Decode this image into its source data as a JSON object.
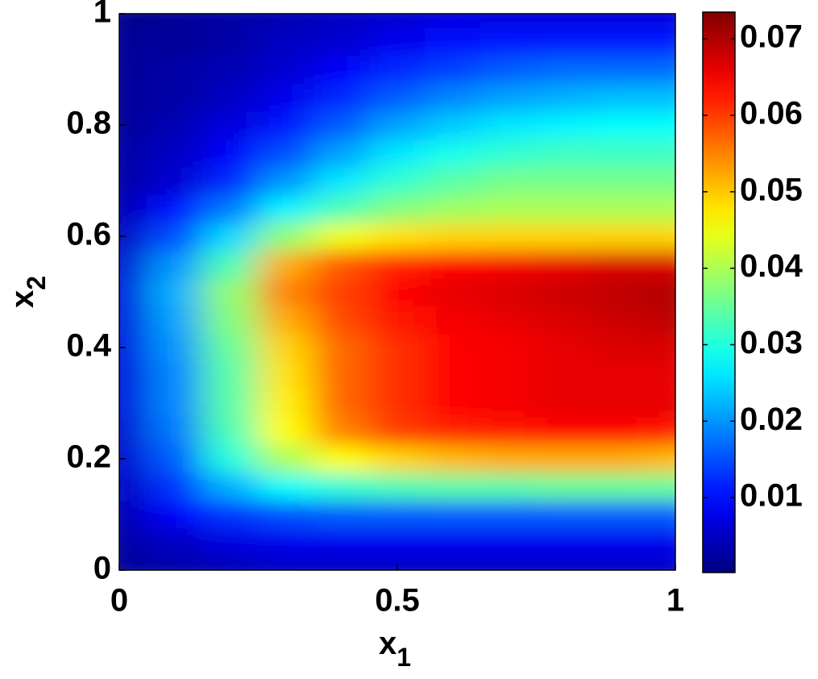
{
  "chart_data": {
    "type": "heatmap",
    "colormap": "jet",
    "x": [
      0,
      0.1,
      0.2,
      0.3,
      0.4,
      0.5,
      0.6,
      0.7,
      0.8,
      0.9,
      1
    ],
    "y": [
      0,
      0.05,
      0.1,
      0.15,
      0.2,
      0.25,
      0.3,
      0.35,
      0.4,
      0.45,
      0.5,
      0.55,
      0.6,
      0.65,
      0.7,
      0.75,
      0.8,
      0.85,
      0.9,
      0.95,
      1
    ],
    "z": [
      [
        0.002,
        0.003,
        0.004,
        0.005,
        0.005,
        0.005,
        0.005,
        0.005,
        0.005,
        0.005,
        0.005
      ],
      [
        0.003,
        0.005,
        0.007,
        0.008,
        0.008,
        0.008,
        0.008,
        0.008,
        0.008,
        0.008,
        0.008
      ],
      [
        0.004,
        0.009,
        0.013,
        0.015,
        0.016,
        0.016,
        0.016,
        0.016,
        0.016,
        0.016,
        0.016
      ],
      [
        0.005,
        0.013,
        0.022,
        0.028,
        0.031,
        0.033,
        0.034,
        0.034,
        0.035,
        0.035,
        0.035
      ],
      [
        0.006,
        0.016,
        0.03,
        0.04,
        0.046,
        0.049,
        0.051,
        0.052,
        0.052,
        0.052,
        0.051
      ],
      [
        0.006,
        0.018,
        0.033,
        0.046,
        0.055,
        0.06,
        0.062,
        0.063,
        0.064,
        0.064,
        0.063
      ],
      [
        0.007,
        0.019,
        0.034,
        0.047,
        0.057,
        0.061,
        0.064,
        0.065,
        0.066,
        0.066,
        0.066
      ],
      [
        0.007,
        0.019,
        0.034,
        0.048,
        0.057,
        0.061,
        0.064,
        0.065,
        0.066,
        0.066,
        0.066
      ],
      [
        0.007,
        0.02,
        0.035,
        0.049,
        0.057,
        0.061,
        0.064,
        0.065,
        0.066,
        0.067,
        0.067
      ],
      [
        0.007,
        0.021,
        0.037,
        0.052,
        0.059,
        0.063,
        0.065,
        0.066,
        0.067,
        0.068,
        0.069
      ],
      [
        0.007,
        0.022,
        0.038,
        0.055,
        0.06,
        0.064,
        0.066,
        0.067,
        0.068,
        0.069,
        0.07
      ],
      [
        0.006,
        0.02,
        0.033,
        0.052,
        0.058,
        0.062,
        0.064,
        0.065,
        0.066,
        0.067,
        0.067
      ],
      [
        0.005,
        0.015,
        0.025,
        0.038,
        0.045,
        0.048,
        0.049,
        0.049,
        0.049,
        0.049,
        0.049
      ],
      [
        0.004,
        0.01,
        0.018,
        0.027,
        0.033,
        0.037,
        0.039,
        0.04,
        0.04,
        0.04,
        0.04
      ],
      [
        0.003,
        0.006,
        0.012,
        0.02,
        0.026,
        0.031,
        0.034,
        0.036,
        0.036,
        0.036,
        0.036
      ],
      [
        0.003,
        0.005,
        0.009,
        0.015,
        0.021,
        0.026,
        0.029,
        0.031,
        0.032,
        0.032,
        0.032
      ],
      [
        0.002,
        0.004,
        0.007,
        0.011,
        0.016,
        0.021,
        0.024,
        0.026,
        0.027,
        0.028,
        0.028
      ],
      [
        0.002,
        0.003,
        0.005,
        0.008,
        0.012,
        0.016,
        0.019,
        0.021,
        0.022,
        0.023,
        0.023
      ],
      [
        0.002,
        0.003,
        0.004,
        0.006,
        0.009,
        0.012,
        0.014,
        0.016,
        0.017,
        0.017,
        0.017
      ],
      [
        0.002,
        0.002,
        0.003,
        0.005,
        0.006,
        0.008,
        0.01,
        0.011,
        0.011,
        0.011,
        0.011
      ],
      [
        0.001,
        0.002,
        0.003,
        0.004,
        0.005,
        0.006,
        0.007,
        0.007,
        0.007,
        0.007,
        0.007
      ]
    ],
    "xlim": [
      0,
      1
    ],
    "ylim": [
      0,
      1
    ],
    "xticks": [
      0,
      0.5,
      1
    ],
    "yticks": [
      0,
      0.2,
      0.4,
      0.6,
      0.8,
      1
    ],
    "xlabel": [
      "x",
      "1"
    ],
    "ylabel": [
      "x",
      "2"
    ],
    "colorbar": {
      "clim": [
        0.0002,
        0.0735
      ],
      "ticks": [
        0.01,
        0.02,
        0.03,
        0.04,
        0.05,
        0.06,
        0.07
      ]
    }
  }
}
